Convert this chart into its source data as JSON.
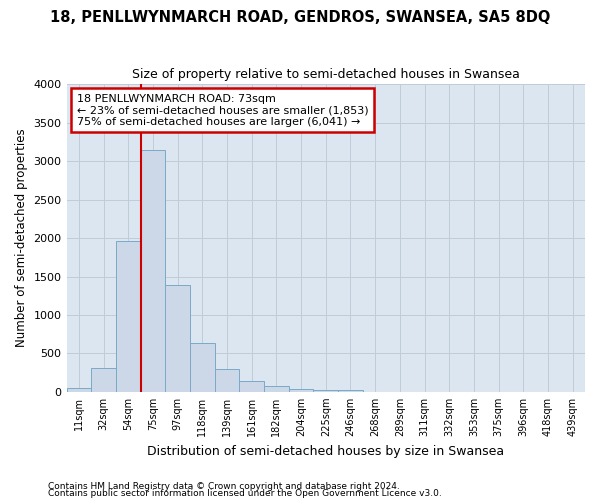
{
  "title": "18, PENLLWYNMARCH ROAD, GENDROS, SWANSEA, SA5 8DQ",
  "subtitle": "Size of property relative to semi-detached houses in Swansea",
  "xlabel": "Distribution of semi-detached houses by size in Swansea",
  "ylabel": "Number of semi-detached properties",
  "footnote1": "Contains HM Land Registry data © Crown copyright and database right 2024.",
  "footnote2": "Contains public sector information licensed under the Open Government Licence v3.0.",
  "categories": [
    "11sqm",
    "32sqm",
    "54sqm",
    "75sqm",
    "97sqm",
    "118sqm",
    "139sqm",
    "161sqm",
    "182sqm",
    "204sqm",
    "225sqm",
    "246sqm",
    "268sqm",
    "289sqm",
    "311sqm",
    "332sqm",
    "353sqm",
    "375sqm",
    "396sqm",
    "418sqm",
    "439sqm"
  ],
  "values": [
    50,
    310,
    1960,
    3150,
    1390,
    640,
    300,
    140,
    80,
    40,
    30,
    20,
    0,
    0,
    0,
    0,
    0,
    0,
    0,
    0,
    0
  ],
  "bar_color": "#ccd8e8",
  "bar_edge_color": "#7aaac8",
  "grid_color": "#c0ccd8",
  "background_color": "#dce6f0",
  "property_line_color": "#cc0000",
  "property_line_index": 3,
  "annotation_text": "18 PENLLWYNMARCH ROAD: 73sqm\n← 23% of semi-detached houses are smaller (1,853)\n75% of semi-detached houses are larger (6,041) →",
  "annotation_box_color": "#cc0000",
  "ylim": [
    0,
    4000
  ],
  "yticks": [
    0,
    500,
    1000,
    1500,
    2000,
    2500,
    3000,
    3500,
    4000
  ],
  "title_fontsize": 10.5,
  "subtitle_fontsize": 9
}
